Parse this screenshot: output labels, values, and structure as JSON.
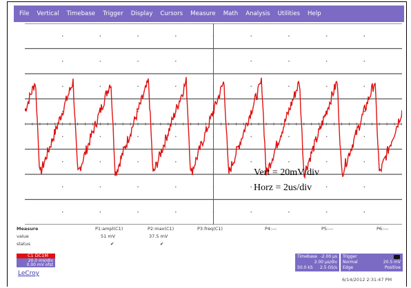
{
  "menu": [
    "File",
    "Vertical",
    "Timebase",
    "Trigger",
    "Display",
    "Cursors",
    "Measure",
    "Math",
    "Analysis",
    "Utilities",
    "Help"
  ],
  "annotation": {
    "vert": "Vert = 20mV/div",
    "horz": "Horz = 2us/div"
  },
  "colors": {
    "menubar": "#7b6bc4",
    "trace": "#e01010",
    "grid": "#555555"
  },
  "trace": {
    "channel": "C1",
    "periods": 10,
    "divisions_x": 10,
    "divisions_y": 8
  },
  "measurements": {
    "row_labels": [
      "Measure",
      "value",
      "status"
    ],
    "columns": [
      {
        "param": "P1:ampl(C1)",
        "value": "51 mV"
      },
      {
        "param": "P2:max(C1)",
        "value": "37.5 mV"
      },
      {
        "param": "P3:freq(C1)",
        "value": ""
      },
      {
        "param": "P4:---",
        "value": ""
      },
      {
        "param": "P5:---",
        "value": ""
      },
      {
        "param": "P6:---",
        "value": ""
      }
    ]
  },
  "channel_box": {
    "label": "C1 DC1M",
    "volts_per_div": "20.0 mV/div",
    "offset": "0.00 mV ofst"
  },
  "timebase_box": {
    "title": "Timebase",
    "value": "-2.00 µs",
    "per_div": "2.00 µs/div",
    "samples": "50.0 kS",
    "rate": "2.5 GS/s"
  },
  "trigger_box": {
    "title": "Trigger",
    "mode": "Normal",
    "level": "20.5 mV",
    "type": "Edge",
    "slope": "Positive"
  },
  "brand": "LeCroy",
  "clock": "6/14/2012 2:31:47 PM"
}
